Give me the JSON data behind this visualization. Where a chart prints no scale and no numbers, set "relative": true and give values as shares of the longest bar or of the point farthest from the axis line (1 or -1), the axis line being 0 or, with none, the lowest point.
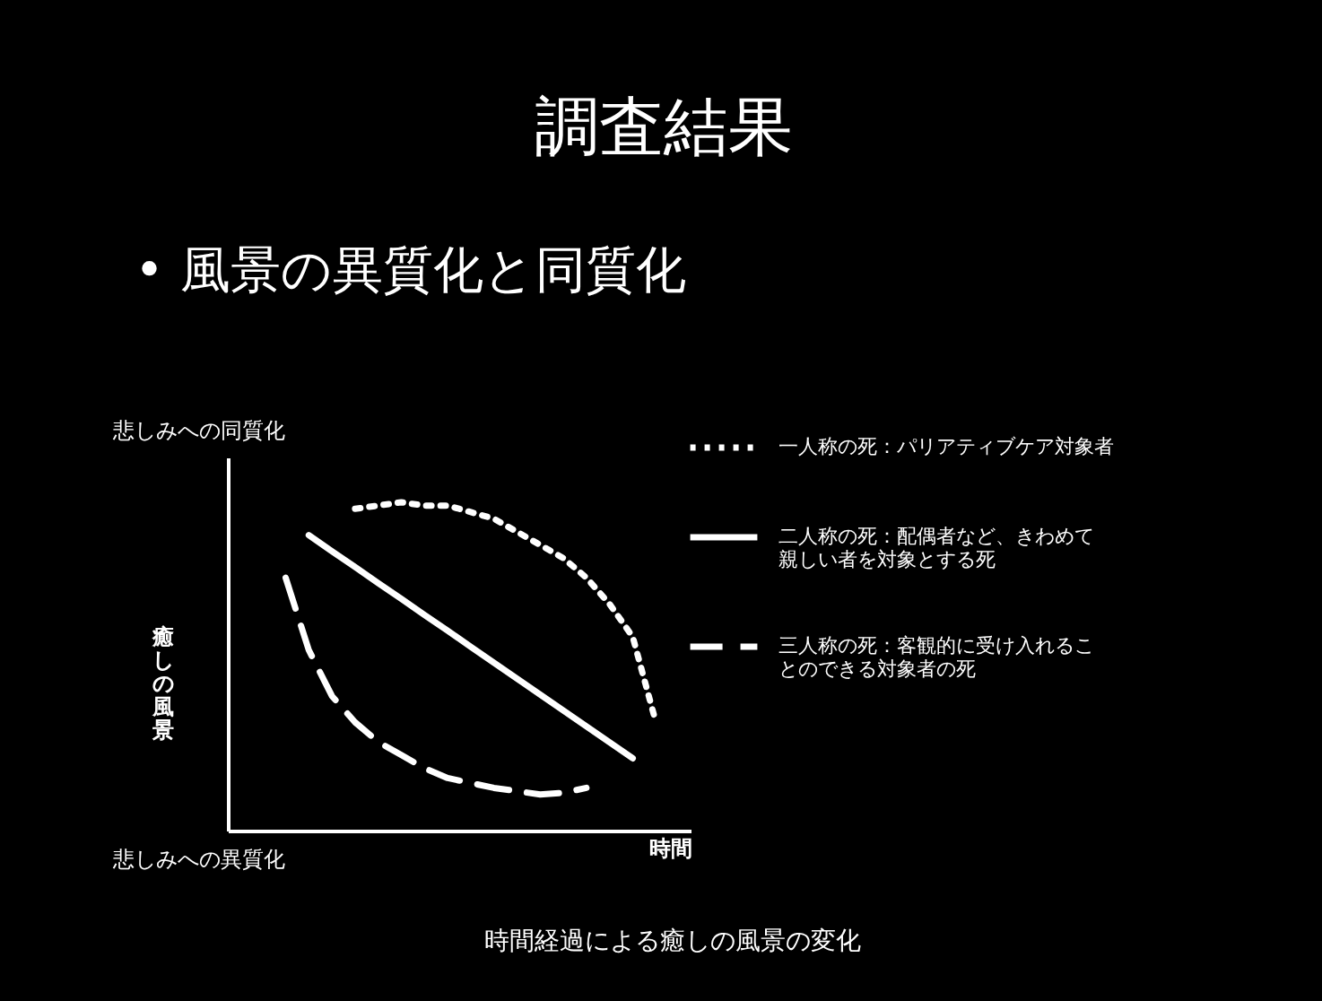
{
  "chart_data": {
    "type": "line",
    "title": "調査結果",
    "subtitle": "• 風景の異質化と同質化",
    "ylabel": "癒しの風景",
    "xlabel": "時間",
    "relative": true,
    "legend": "right",
    "marker": "none",
    "categories": [
      null,
      null,
      null,
      null,
      null,
      null,
      null,
      null,
      null,
      null,
      null,
      null,
      null,
      null,
      null,
      null,
      null,
      null,
      null,
      null
    ],
    "annotations": [
      "悲しみへの同質化",
      "悲しみへの異質化",
      "時間経過による癒しの風景の変化"
    ],
    "series": [
      {
        "name": "一人称の死：パリアティブケア対象者",
        "color": "#ffffff",
        "line_style": "dotted",
        "values": [
          null,
          null,
          null,
          null,
          null,
          0.98,
          0.99,
          1,
          0.99,
          0.99,
          0.97,
          0.95,
          0.91,
          0.87,
          0.83,
          0.77,
          0.69,
          0.59,
          0.33,
          null
        ]
      },
      {
        "name": "二人称の死：配偶者など、きわめて親しい者を対象とする死",
        "color": "#ffffff",
        "line_style": "solid",
        "values": [
          null,
          null,
          null,
          0.9,
          0.851,
          0.803,
          0.754,
          0.706,
          0.657,
          0.609,
          0.56,
          0.511,
          0.463,
          0.414,
          0.366,
          0.317,
          0.269,
          0.22,
          null,
          null
        ]
      },
      {
        "name": "三人称の死：客観的に受け入れることのできる対象者の死",
        "color": "#ffffff",
        "line_style": "dashed",
        "values": [
          null,
          null,
          0.77,
          0.55,
          0.41,
          0.33,
          0.27,
          0.23,
          0.19,
          0.16,
          0.145,
          0.13,
          0.12,
          0.11,
          0.115,
          0.13,
          null,
          null,
          null,
          null
        ]
      }
    ]
  }
}
